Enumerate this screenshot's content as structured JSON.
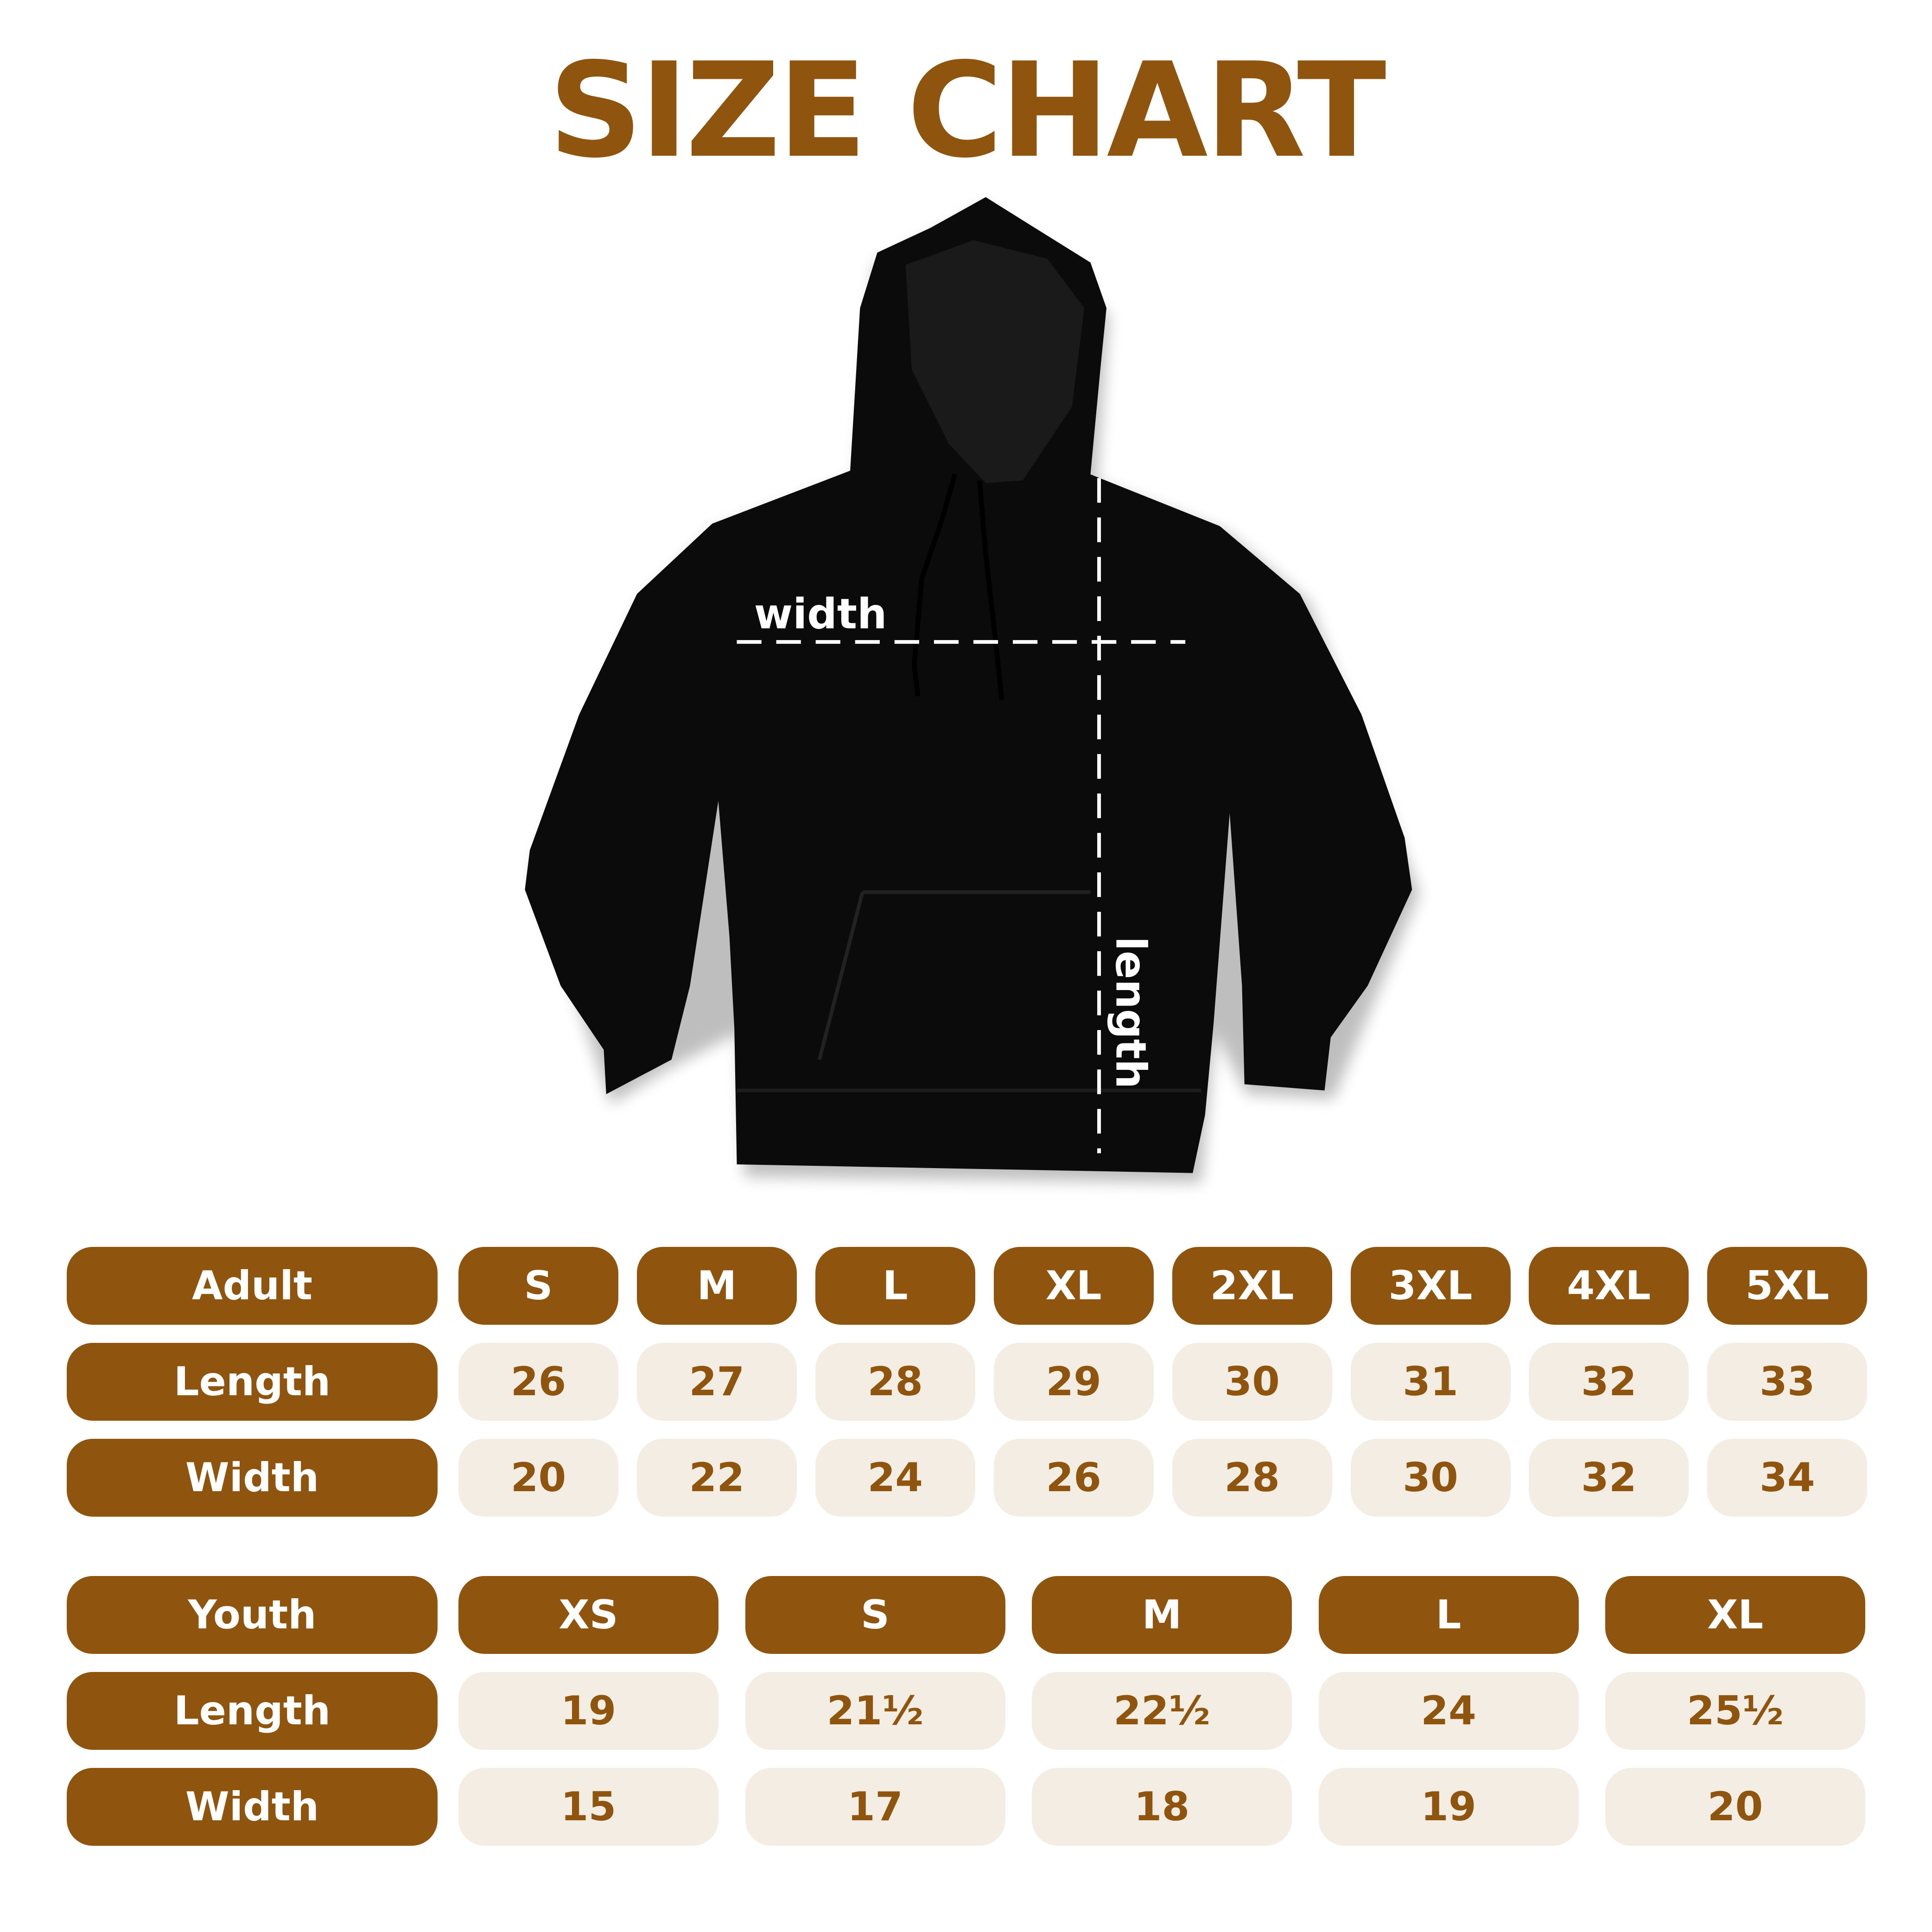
{
  "title": "SIZE CHART",
  "colors": {
    "brand": "#8f540e",
    "cell_bg": "#f3ede4",
    "garment": "#0b0b0b"
  },
  "illustration": {
    "garment": "hoodie",
    "width_label": "width",
    "length_label": "length"
  },
  "adult": {
    "header": "Adult",
    "sizes": [
      "S",
      "M",
      "L",
      "XL",
      "2XL",
      "3XL",
      "4XL",
      "5XL"
    ],
    "rows": [
      {
        "label": "Length",
        "values": [
          "26",
          "27",
          "28",
          "29",
          "30",
          "31",
          "32",
          "33"
        ]
      },
      {
        "label": "Width",
        "values": [
          "20",
          "22",
          "24",
          "26",
          "28",
          "30",
          "32",
          "34"
        ]
      }
    ]
  },
  "youth": {
    "header": "Youth",
    "sizes": [
      "XS",
      "S",
      "M",
      "L",
      "XL"
    ],
    "rows": [
      {
        "label": "Length",
        "values": [
          "19",
          "21½",
          "22½",
          "24",
          "25½"
        ]
      },
      {
        "label": "Width",
        "values": [
          "15",
          "17",
          "18",
          "19",
          "20"
        ]
      }
    ]
  }
}
